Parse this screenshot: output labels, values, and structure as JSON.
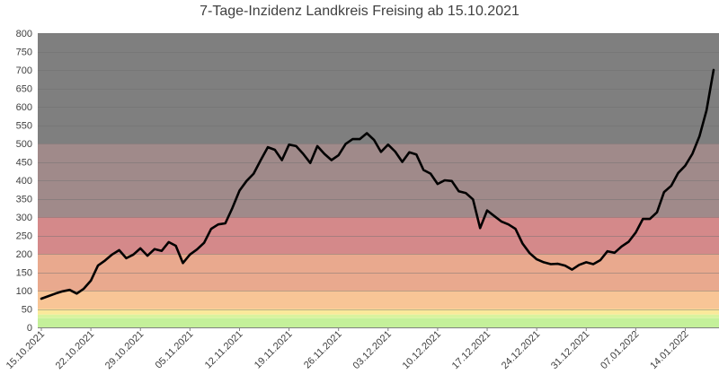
{
  "chart_data": {
    "type": "line",
    "title": "7-Tage-Inzidenz Landkreis Freising ab 15.10.2021",
    "xlabel": "",
    "ylabel": "",
    "ylim": [
      0,
      800
    ],
    "yticks": [
      0,
      50,
      100,
      150,
      200,
      250,
      300,
      350,
      400,
      450,
      500,
      550,
      600,
      650,
      700,
      750,
      800
    ],
    "x_tick_labels": [
      "15.10.2021",
      "22.10.2021",
      "29.10.2021",
      "05.11.2021",
      "12.11.2021",
      "19.11.2021",
      "26.11.2021",
      "03.12.2021",
      "10.12.2021",
      "17.12.2021",
      "24.12.2021",
      "31.12.2021",
      "07.01.2022",
      "14.01.2022"
    ],
    "grid": true,
    "bands": [
      {
        "from": 0,
        "to": 25,
        "color": "#c4f09a"
      },
      {
        "from": 25,
        "to": 35,
        "color": "#d9f39e"
      },
      {
        "from": 35,
        "to": 50,
        "color": "#fbe99a"
      },
      {
        "from": 50,
        "to": 100,
        "color": "#f8c596"
      },
      {
        "from": 100,
        "to": 200,
        "color": "#e9a98e"
      },
      {
        "from": 200,
        "to": 300,
        "color": "#d4898a"
      },
      {
        "from": 300,
        "to": 500,
        "color": "#a08a8a"
      },
      {
        "from": 500,
        "to": 800,
        "color": "#7f7f7f"
      }
    ],
    "series": [
      {
        "color": "#000000",
        "values": [
          78,
          85,
          92,
          98,
          102,
          92,
          105,
          127,
          168,
          182,
          198,
          210,
          188,
          198,
          215,
          195,
          213,
          208,
          232,
          222,
          175,
          198,
          212,
          230,
          268,
          280,
          283,
          325,
          372,
          398,
          418,
          455,
          490,
          483,
          455,
          497,
          493,
          472,
          447,
          493,
          472,
          455,
          468,
          499,
          512,
          512,
          528,
          510,
          477,
          497,
          478,
          450,
          476,
          470,
          428,
          418,
          390,
          400,
          398,
          370,
          365,
          348,
          270,
          318,
          303,
          288,
          280,
          268,
          228,
          202,
          185,
          177,
          172,
          173,
          168,
          157,
          170,
          177,
          172,
          183,
          207,
          203,
          220,
          233,
          258,
          295,
          295,
          313,
          368,
          385,
          420,
          440,
          472,
          520,
          590,
          700
        ]
      }
    ]
  }
}
